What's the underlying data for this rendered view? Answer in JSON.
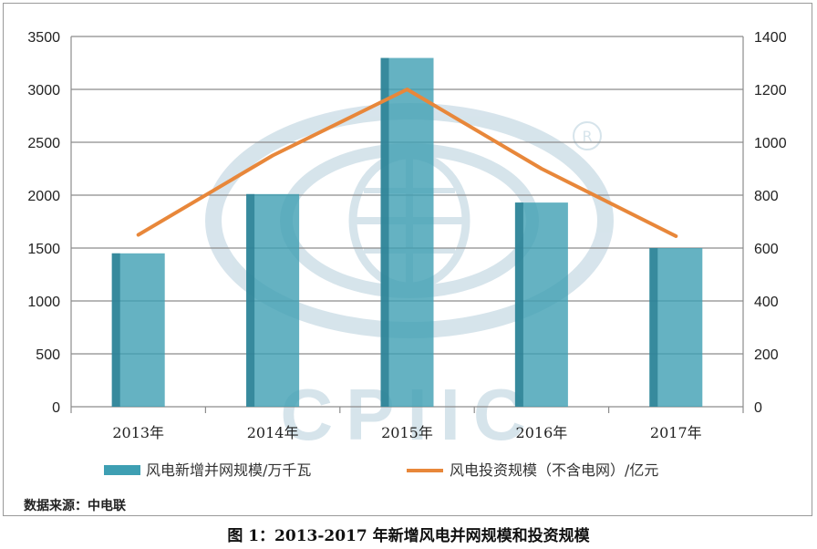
{
  "chart_data": {
    "type": "bar",
    "categories": [
      "2013年",
      "2014年",
      "2015年",
      "2016年",
      "2017年"
    ],
    "series": [
      {
        "name": "风电新增并网规模/万千瓦",
        "type": "bar",
        "axis": "left",
        "values": [
          1450,
          2010,
          3297,
          1930,
          1500
        ],
        "color": "#3e9fb3"
      },
      {
        "name": "风电投资规模（不含电网）/亿元",
        "type": "line",
        "axis": "right",
        "values": [
          650,
          950,
          1200,
          900,
          645
        ],
        "color": "#e8873a"
      }
    ],
    "y_left": {
      "min": 0,
      "max": 3500,
      "ticks": [
        0,
        500,
        1000,
        1500,
        2000,
        2500,
        3000,
        3500
      ]
    },
    "y_right": {
      "min": 0,
      "max": 1400,
      "ticks": [
        0,
        200,
        400,
        600,
        800,
        1000,
        1200,
        1400
      ]
    },
    "grid": true,
    "legend_position": "bottom"
  },
  "source": "数据来源：中电联",
  "caption": "图 1：2013-2017 年新增风电并网规模和投资规模",
  "watermark": "CPIIC"
}
